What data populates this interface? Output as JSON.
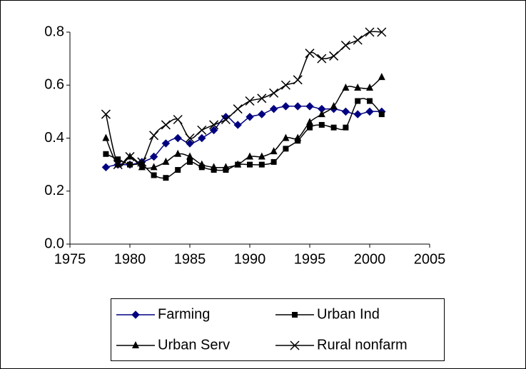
{
  "chart_data": {
    "type": "line",
    "x": [
      1978,
      1979,
      1980,
      1981,
      1982,
      1983,
      1984,
      1985,
      1986,
      1987,
      1988,
      1989,
      1990,
      1991,
      1992,
      1993,
      1994,
      1995,
      1996,
      1997,
      1998,
      1999,
      2000,
      2001
    ],
    "series": [
      {
        "name": "Farming",
        "color": "#000080",
        "marker": "diamond",
        "values": [
          0.29,
          0.3,
          0.3,
          0.31,
          0.33,
          0.38,
          0.4,
          0.38,
          0.4,
          0.43,
          0.48,
          0.45,
          0.48,
          0.49,
          0.51,
          0.52,
          0.52,
          0.52,
          0.51,
          0.51,
          0.5,
          0.49,
          0.5,
          0.5
        ]
      },
      {
        "name": "Urban Ind",
        "color": "#000000",
        "marker": "square",
        "values": [
          0.34,
          0.32,
          0.3,
          0.3,
          0.26,
          0.25,
          0.28,
          0.31,
          0.29,
          0.28,
          0.28,
          0.3,
          0.3,
          0.3,
          0.31,
          0.36,
          0.39,
          0.44,
          0.45,
          0.44,
          0.44,
          0.54,
          0.54,
          0.49
        ]
      },
      {
        "name": "Urban Serv",
        "color": "#000000",
        "marker": "triangle",
        "values": [
          0.4,
          0.3,
          0.33,
          0.29,
          0.29,
          0.31,
          0.34,
          0.33,
          0.3,
          0.29,
          0.29,
          0.3,
          0.33,
          0.33,
          0.35,
          0.4,
          0.4,
          0.46,
          0.49,
          0.52,
          0.59,
          0.59,
          0.59,
          0.63
        ]
      },
      {
        "name": "Rural nonfarm",
        "color": "#000000",
        "marker": "x",
        "values": [
          0.49,
          0.3,
          0.33,
          0.31,
          0.41,
          0.45,
          0.47,
          0.4,
          0.43,
          0.45,
          0.47,
          0.51,
          0.54,
          0.55,
          0.57,
          0.6,
          0.62,
          0.72,
          0.7,
          0.71,
          0.75,
          0.77,
          0.8,
          0.8
        ]
      }
    ],
    "xlim": [
      1975,
      2005
    ],
    "xticks": [
      1975,
      1980,
      1985,
      1990,
      1995,
      2000,
      2005
    ],
    "ylim": [
      0,
      0.8
    ],
    "yticks": [
      {
        "value": 0,
        "label": "0.0"
      },
      0.2,
      0.4,
      0.6,
      0.8
    ],
    "grid": false,
    "legend": "bottom",
    "smooth": true
  }
}
